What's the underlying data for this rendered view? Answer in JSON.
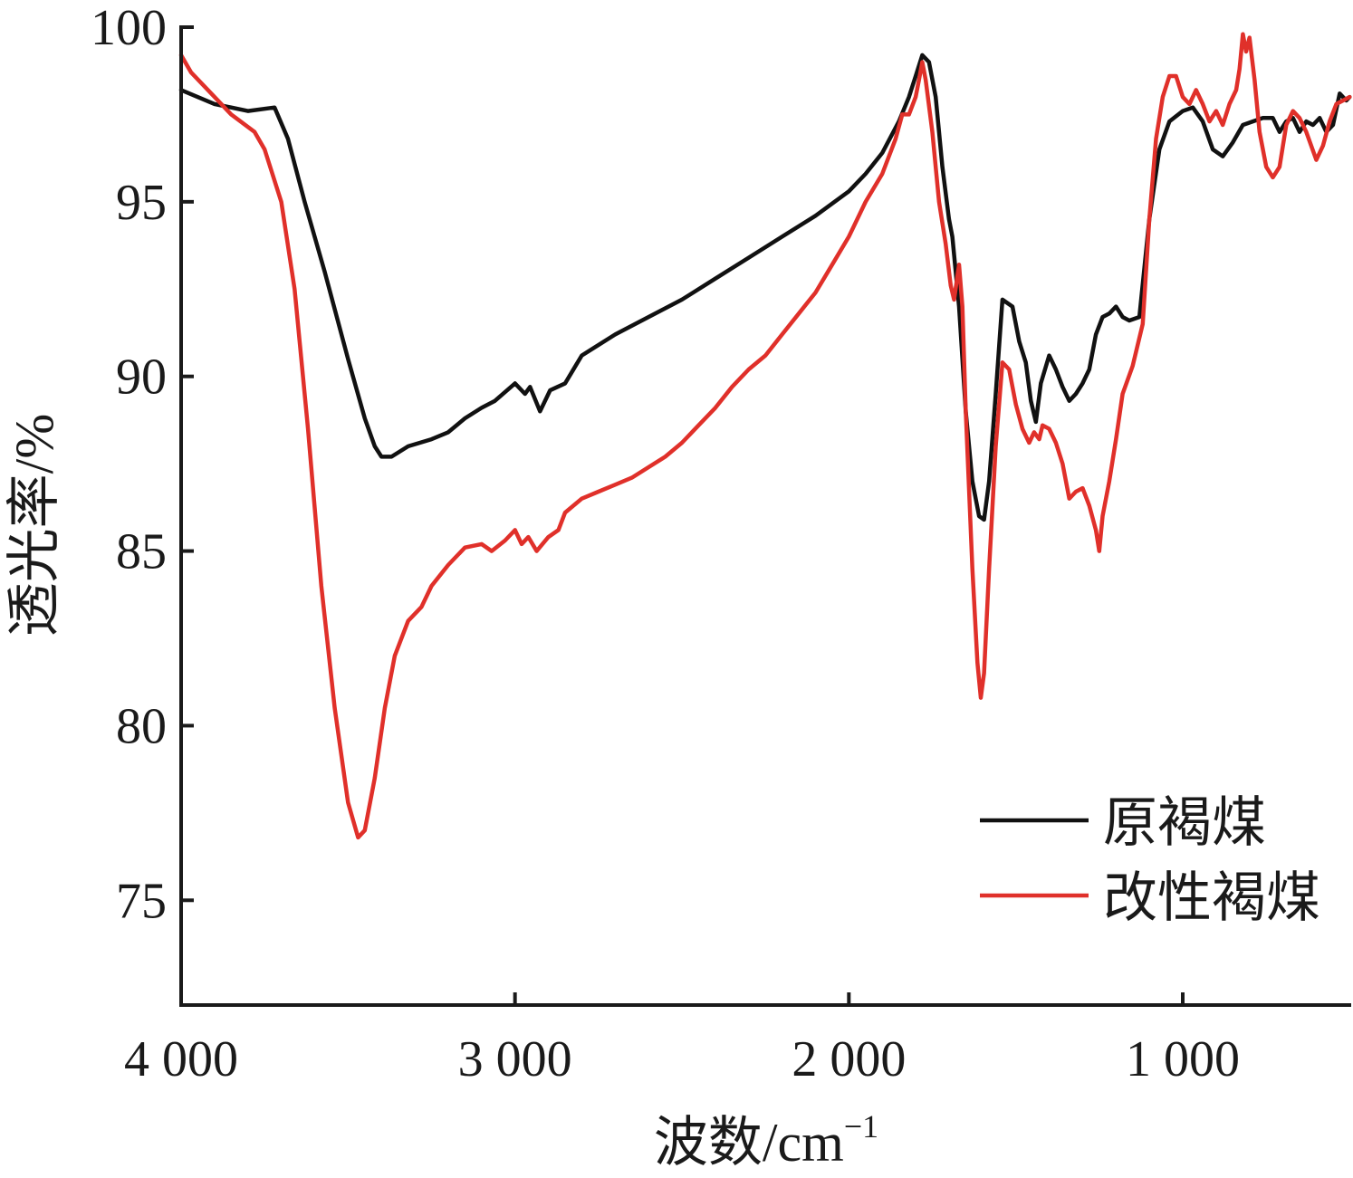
{
  "chart_data": {
    "type": "line",
    "xlabel": "波数/cm",
    "xlabel_sup": "−1",
    "ylabel": "透光率/%",
    "xlim": [
      4000,
      500
    ],
    "xaxis_reversed": true,
    "ylim": [
      72,
      100
    ],
    "xticks": [
      4000,
      3000,
      2000,
      1000
    ],
    "xtick_labels": [
      "4 000",
      "3 000",
      "2 000",
      "1 000"
    ],
    "yticks": [
      75,
      80,
      85,
      90,
      95,
      100
    ],
    "ytick_labels": [
      "75",
      "80",
      "85",
      "90",
      "95",
      "100"
    ],
    "grid": false,
    "legend_position": "bottom-right",
    "series": [
      {
        "name": "原褐煤",
        "color": "#111111",
        "points": [
          [
            4000,
            98.2
          ],
          [
            3900,
            97.8
          ],
          [
            3800,
            97.6
          ],
          [
            3720,
            97.7
          ],
          [
            3680,
            96.8
          ],
          [
            3630,
            95.0
          ],
          [
            3570,
            93.0
          ],
          [
            3500,
            90.5
          ],
          [
            3450,
            88.8
          ],
          [
            3420,
            88.0
          ],
          [
            3400,
            87.7
          ],
          [
            3370,
            87.7
          ],
          [
            3320,
            88.0
          ],
          [
            3250,
            88.2
          ],
          [
            3200,
            88.4
          ],
          [
            3150,
            88.8
          ],
          [
            3100,
            89.1
          ],
          [
            3060,
            89.3
          ],
          [
            3000,
            89.8
          ],
          [
            2970,
            89.5
          ],
          [
            2955,
            89.7
          ],
          [
            2925,
            89.0
          ],
          [
            2895,
            89.6
          ],
          [
            2850,
            89.8
          ],
          [
            2800,
            90.6
          ],
          [
            2700,
            91.2
          ],
          [
            2600,
            91.7
          ],
          [
            2500,
            92.2
          ],
          [
            2400,
            92.8
          ],
          [
            2300,
            93.4
          ],
          [
            2200,
            94.0
          ],
          [
            2100,
            94.6
          ],
          [
            2000,
            95.3
          ],
          [
            1950,
            95.8
          ],
          [
            1900,
            96.4
          ],
          [
            1850,
            97.3
          ],
          [
            1820,
            98.0
          ],
          [
            1800,
            98.6
          ],
          [
            1780,
            99.2
          ],
          [
            1760,
            99.0
          ],
          [
            1740,
            98.0
          ],
          [
            1720,
            96.0
          ],
          [
            1700,
            94.5
          ],
          [
            1690,
            94.0
          ],
          [
            1670,
            92.0
          ],
          [
            1650,
            89.0
          ],
          [
            1630,
            87.0
          ],
          [
            1610,
            86.0
          ],
          [
            1595,
            85.9
          ],
          [
            1580,
            87.0
          ],
          [
            1560,
            89.5
          ],
          [
            1540,
            92.2
          ],
          [
            1510,
            92.0
          ],
          [
            1490,
            91.0
          ],
          [
            1470,
            90.4
          ],
          [
            1455,
            89.3
          ],
          [
            1440,
            88.7
          ],
          [
            1425,
            89.8
          ],
          [
            1400,
            90.6
          ],
          [
            1380,
            90.2
          ],
          [
            1360,
            89.7
          ],
          [
            1340,
            89.3
          ],
          [
            1320,
            89.5
          ],
          [
            1300,
            89.8
          ],
          [
            1280,
            90.2
          ],
          [
            1260,
            91.2
          ],
          [
            1240,
            91.7
          ],
          [
            1220,
            91.8
          ],
          [
            1200,
            92.0
          ],
          [
            1180,
            91.7
          ],
          [
            1160,
            91.6
          ],
          [
            1130,
            91.7
          ],
          [
            1100,
            94.5
          ],
          [
            1070,
            96.5
          ],
          [
            1040,
            97.3
          ],
          [
            1000,
            97.6
          ],
          [
            970,
            97.7
          ],
          [
            940,
            97.3
          ],
          [
            910,
            96.5
          ],
          [
            880,
            96.3
          ],
          [
            850,
            96.7
          ],
          [
            820,
            97.2
          ],
          [
            790,
            97.3
          ],
          [
            760,
            97.4
          ],
          [
            730,
            97.4
          ],
          [
            710,
            97.0
          ],
          [
            690,
            97.3
          ],
          [
            670,
            97.4
          ],
          [
            650,
            97.0
          ],
          [
            630,
            97.3
          ],
          [
            610,
            97.2
          ],
          [
            590,
            97.4
          ],
          [
            570,
            97.0
          ],
          [
            550,
            97.2
          ],
          [
            530,
            98.1
          ],
          [
            510,
            97.9
          ],
          [
            500,
            98.0
          ]
        ]
      },
      {
        "name": "改性褐煤",
        "color": "#e0302a",
        "points": [
          [
            4000,
            99.2
          ],
          [
            3970,
            98.7
          ],
          [
            3900,
            98.0
          ],
          [
            3850,
            97.5
          ],
          [
            3780,
            97.0
          ],
          [
            3750,
            96.5
          ],
          [
            3700,
            95.0
          ],
          [
            3660,
            92.5
          ],
          [
            3620,
            88.5
          ],
          [
            3580,
            84.0
          ],
          [
            3540,
            80.5
          ],
          [
            3500,
            77.8
          ],
          [
            3470,
            76.8
          ],
          [
            3450,
            77.0
          ],
          [
            3420,
            78.5
          ],
          [
            3390,
            80.5
          ],
          [
            3360,
            82.0
          ],
          [
            3320,
            83.0
          ],
          [
            3280,
            83.4
          ],
          [
            3250,
            84.0
          ],
          [
            3200,
            84.6
          ],
          [
            3150,
            85.1
          ],
          [
            3100,
            85.2
          ],
          [
            3070,
            85.0
          ],
          [
            3030,
            85.3
          ],
          [
            3000,
            85.6
          ],
          [
            2980,
            85.2
          ],
          [
            2960,
            85.4
          ],
          [
            2935,
            85.0
          ],
          [
            2900,
            85.4
          ],
          [
            2870,
            85.6
          ],
          [
            2850,
            86.1
          ],
          [
            2800,
            86.5
          ],
          [
            2750,
            86.7
          ],
          [
            2700,
            86.9
          ],
          [
            2650,
            87.1
          ],
          [
            2600,
            87.4
          ],
          [
            2550,
            87.7
          ],
          [
            2500,
            88.1
          ],
          [
            2450,
            88.6
          ],
          [
            2400,
            89.1
          ],
          [
            2350,
            89.7
          ],
          [
            2300,
            90.2
          ],
          [
            2250,
            90.6
          ],
          [
            2200,
            91.2
          ],
          [
            2150,
            91.8
          ],
          [
            2100,
            92.4
          ],
          [
            2050,
            93.2
          ],
          [
            2000,
            94.0
          ],
          [
            1950,
            95.0
          ],
          [
            1900,
            95.8
          ],
          [
            1860,
            96.8
          ],
          [
            1840,
            97.5
          ],
          [
            1820,
            97.5
          ],
          [
            1800,
            98.0
          ],
          [
            1790,
            98.5
          ],
          [
            1780,
            99.0
          ],
          [
            1770,
            98.5
          ],
          [
            1750,
            97.0
          ],
          [
            1730,
            95.0
          ],
          [
            1710,
            93.8
          ],
          [
            1695,
            92.6
          ],
          [
            1685,
            92.2
          ],
          [
            1670,
            93.2
          ],
          [
            1660,
            92.0
          ],
          [
            1650,
            89.0
          ],
          [
            1630,
            84.5
          ],
          [
            1615,
            81.8
          ],
          [
            1605,
            80.8
          ],
          [
            1595,
            81.5
          ],
          [
            1580,
            84.5
          ],
          [
            1560,
            88.0
          ],
          [
            1540,
            90.4
          ],
          [
            1520,
            90.2
          ],
          [
            1500,
            89.2
          ],
          [
            1480,
            88.5
          ],
          [
            1460,
            88.1
          ],
          [
            1445,
            88.4
          ],
          [
            1430,
            88.2
          ],
          [
            1420,
            88.6
          ],
          [
            1400,
            88.5
          ],
          [
            1380,
            88.1
          ],
          [
            1360,
            87.5
          ],
          [
            1340,
            86.5
          ],
          [
            1320,
            86.7
          ],
          [
            1300,
            86.8
          ],
          [
            1280,
            86.3
          ],
          [
            1260,
            85.6
          ],
          [
            1250,
            85.0
          ],
          [
            1240,
            86.0
          ],
          [
            1220,
            87.0
          ],
          [
            1200,
            88.2
          ],
          [
            1180,
            89.5
          ],
          [
            1150,
            90.3
          ],
          [
            1120,
            91.5
          ],
          [
            1100,
            94.5
          ],
          [
            1080,
            96.8
          ],
          [
            1060,
            98.0
          ],
          [
            1040,
            98.6
          ],
          [
            1020,
            98.6
          ],
          [
            1000,
            98.0
          ],
          [
            980,
            97.8
          ],
          [
            960,
            98.2
          ],
          [
            940,
            97.8
          ],
          [
            920,
            97.3
          ],
          [
            900,
            97.6
          ],
          [
            880,
            97.2
          ],
          [
            860,
            97.8
          ],
          [
            840,
            98.2
          ],
          [
            830,
            98.8
          ],
          [
            820,
            99.8
          ],
          [
            810,
            99.3
          ],
          [
            800,
            99.7
          ],
          [
            785,
            98.5
          ],
          [
            770,
            97.0
          ],
          [
            750,
            96.0
          ],
          [
            730,
            95.7
          ],
          [
            710,
            96.0
          ],
          [
            690,
            97.2
          ],
          [
            670,
            97.6
          ],
          [
            650,
            97.4
          ],
          [
            630,
            97.0
          ],
          [
            600,
            96.2
          ],
          [
            580,
            96.6
          ],
          [
            560,
            97.3
          ],
          [
            540,
            97.8
          ],
          [
            520,
            97.9
          ],
          [
            500,
            98.0
          ]
        ]
      }
    ]
  }
}
